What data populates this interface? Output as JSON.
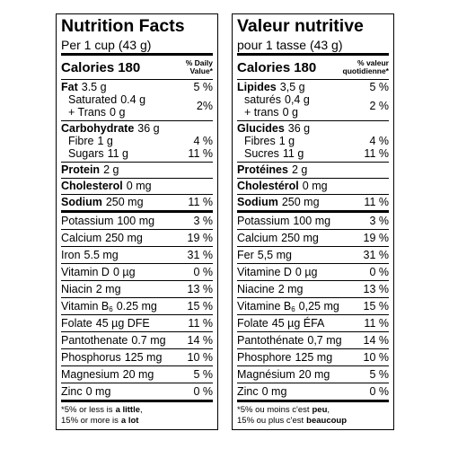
{
  "panels": [
    {
      "title": "Nutrition Facts",
      "serving": "Per 1 cup (43 g)",
      "calories": {
        "label": "Calories",
        "value": 180
      },
      "dv_header": [
        "% Daily",
        "Value*"
      ],
      "groups": [
        {
          "main": {
            "name": "Fat",
            "amount": "3.5 g",
            "dv": "5 %"
          },
          "subs": [
            {
              "name": "Saturated",
              "amount": "0.4 g"
            },
            {
              "name": "+ Trans",
              "amount": "0 g"
            }
          ],
          "subs_dv": "2%"
        },
        {
          "main": {
            "name": "Carbohydrate",
            "amount": "36 g"
          },
          "subs": [
            {
              "name": "Fibre",
              "amount": "1 g",
              "dv": "4 %"
            },
            {
              "name": "Sugars",
              "amount": "11 g",
              "dv": "11 %"
            }
          ]
        },
        {
          "main": {
            "name": "Protein",
            "amount": "2 g"
          }
        },
        {
          "main": {
            "name": "Cholesterol",
            "amount": "0 mg"
          }
        },
        {
          "main": {
            "name": "Sodium",
            "amount": "250 mg",
            "dv": "11 %"
          }
        }
      ],
      "micros": [
        {
          "name": "Potassium",
          "amount": "100 mg",
          "dv": "3 %"
        },
        {
          "name": "Calcium",
          "amount": "250 mg",
          "dv": "19 %"
        },
        {
          "name": "Iron",
          "amount": "5.5 mg",
          "dv": "31 %"
        },
        {
          "name": "Vitamin D",
          "amount": "0 µg",
          "dv": "0 %"
        },
        {
          "name": "Niacin",
          "amount": "2 mg",
          "dv": "13 %"
        },
        {
          "name": "Vitamin B",
          "name_sub": "6",
          "amount": "0.25 mg",
          "dv": "15 %"
        },
        {
          "name": "Folate",
          "amount": "45 µg DFE",
          "dv": "11 %"
        },
        {
          "name": "Pantothenate",
          "amount": "0.7 mg",
          "dv": "14 %"
        },
        {
          "name": "Phosphorus",
          "amount": "125 mg",
          "dv": "10 %"
        },
        {
          "name": "Magnesium",
          "amount": "20 mg",
          "dv": "5 %"
        },
        {
          "name": "Zinc",
          "amount": "0 mg",
          "dv": "0 %"
        }
      ],
      "footnote": [
        [
          {
            "text": "*5% or less is"
          },
          {
            "text": "a little",
            "bold": true
          },
          {
            "text": ","
          }
        ],
        [
          {
            "text": "15% or more is"
          },
          {
            "text": "a lot",
            "bold": true
          }
        ]
      ]
    },
    {
      "title": "Valeur nutritive",
      "serving": "pour 1 tasse (43 g)",
      "calories": {
        "label": "Calories",
        "value": 180
      },
      "dv_header": [
        "% valeur",
        "quotidienne*"
      ],
      "groups": [
        {
          "main": {
            "name": "Lipides",
            "amount": "3,5 g",
            "dv": "5 %"
          },
          "subs": [
            {
              "name": "saturés",
              "amount": "0,4 g"
            },
            {
              "name": "+ trans",
              "amount": "0 g"
            }
          ],
          "subs_dv": "2 %"
        },
        {
          "main": {
            "name": "Glucides",
            "amount": "36 g"
          },
          "subs": [
            {
              "name": "Fibres",
              "amount": "1 g",
              "dv": "4 %"
            },
            {
              "name": "Sucres",
              "amount": "11 g",
              "dv": "11 %"
            }
          ]
        },
        {
          "main": {
            "name": "Protéines",
            "amount": "2 g"
          }
        },
        {
          "main": {
            "name": "Cholestérol",
            "amount": "0 mg"
          }
        },
        {
          "main": {
            "name": "Sodium",
            "amount": "250 mg",
            "dv": "11 %"
          }
        }
      ],
      "micros": [
        {
          "name": "Potassium",
          "amount": "100 mg",
          "dv": "3 %"
        },
        {
          "name": "Calcium",
          "amount": "250 mg",
          "dv": "19 %"
        },
        {
          "name": "Fer",
          "amount": "5,5 mg",
          "dv": "31 %"
        },
        {
          "name": "Vitamine D",
          "amount": "0 µg",
          "dv": "0 %"
        },
        {
          "name": "Niacine",
          "amount": "2 mg",
          "dv": "13 %"
        },
        {
          "name": "Vitamine B",
          "name_sub": "6",
          "amount": "0,25 mg",
          "dv": "15 %"
        },
        {
          "name": "Folate",
          "amount": "45 µg ÉFA",
          "dv": "11 %"
        },
        {
          "name": "Pantothénate",
          "amount": "0,7 mg",
          "dv": "14 %"
        },
        {
          "name": "Phosphore",
          "amount": "125 mg",
          "dv": "10 %"
        },
        {
          "name": "Magnésium",
          "amount": "20 mg",
          "dv": "5 %"
        },
        {
          "name": "Zinc",
          "amount": "0 mg",
          "dv": "0 %"
        }
      ],
      "footnote": [
        [
          {
            "text": "*5% ou moins c'est"
          },
          {
            "text": "peu",
            "bold": true
          },
          {
            "text": ","
          }
        ],
        [
          {
            "text": "15% ou plus c'est"
          },
          {
            "text": "beaucoup",
            "bold": true
          }
        ]
      ]
    }
  ]
}
